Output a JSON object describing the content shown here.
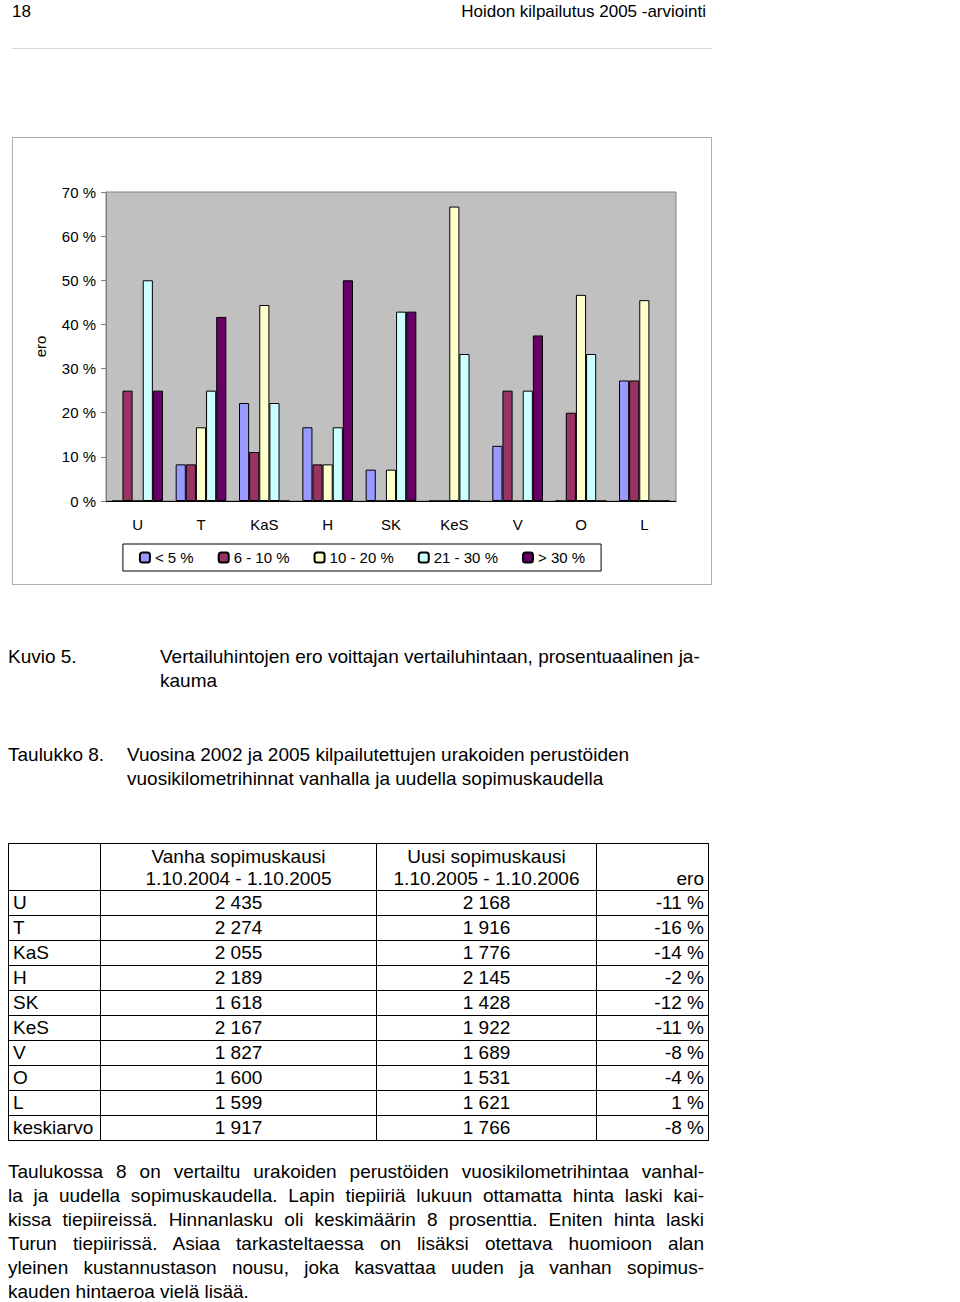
{
  "header": {
    "page_number": "18",
    "title": "Hoidon kilpailutus 2005 -arviointi"
  },
  "chart_data": {
    "type": "bar",
    "categories": [
      "U",
      "T",
      "KaS",
      "H",
      "SK",
      "KeS",
      "V",
      "O",
      "L"
    ],
    "series": [
      {
        "name": "< 5 %",
        "color": "#9999ff",
        "values": [
          0,
          8.3,
          22.2,
          16.7,
          7.1,
          0,
          12.5,
          0,
          27.3
        ]
      },
      {
        "name": "6 - 10 %",
        "color": "#993366",
        "values": [
          25,
          8.3,
          11.1,
          8.3,
          0,
          0,
          25,
          20,
          27.3
        ]
      },
      {
        "name": "10 - 20 %",
        "color": "#ffffcc",
        "values": [
          0,
          16.7,
          44.4,
          8.3,
          7.1,
          66.7,
          0,
          46.7,
          45.5
        ]
      },
      {
        "name": "21 - 30 %",
        "color": "#ccffff",
        "values": [
          50,
          25,
          22.2,
          16.7,
          42.9,
          33.3,
          25,
          33.3,
          0
        ]
      },
      {
        "name": "> 30 %",
        "color": "#660066",
        "values": [
          25,
          41.7,
          0,
          50,
          42.9,
          0,
          37.5,
          0,
          0
        ]
      }
    ],
    "y_label": "ero",
    "ylim": [
      0,
      70
    ],
    "yticks": [
      {
        "value": 0,
        "label": "0 %"
      },
      {
        "value": 10,
        "label": "10 %"
      },
      {
        "value": 20,
        "label": "20 %"
      },
      {
        "value": 30,
        "label": "30 %"
      },
      {
        "value": 40,
        "label": "40 %"
      },
      {
        "value": 50,
        "label": "50 %"
      },
      {
        "value": 60,
        "label": "60 %"
      },
      {
        "value": 70,
        "label": "70 %"
      }
    ],
    "grid": false,
    "legend": "bottom"
  },
  "figure_caption": {
    "label": "Kuvio 5.",
    "lines": [
      "Vertailuhintojen ero voittajan vertailuhintaan, prosentuaalinen ja-",
      "kauma"
    ]
  },
  "table_caption": {
    "label": "Taulukko 8.",
    "lines": [
      "Vuosina 2002 ja 2005 kilpailutettujen urakoiden perustöiden",
      "vuosikilometrihinnat vanhalla ja uudella sopimuskaudella"
    ]
  },
  "table": {
    "header": [
      [
        ""
      ],
      [
        "Vanha sopimuskausi",
        "1.10.2004 - 1.10.2005"
      ],
      [
        "Uusi sopimuskausi",
        "1.10.2005 - 1.10.2006"
      ],
      [
        "ero"
      ]
    ],
    "rows": [
      [
        "U",
        "2 435",
        "2 168",
        "-11 %"
      ],
      [
        "T",
        "2 274",
        "1 916",
        "-16 %"
      ],
      [
        "KaS",
        "2 055",
        "1 776",
        "-14 %"
      ],
      [
        "H",
        "2 189",
        "2 145",
        "-2 %"
      ],
      [
        "SK",
        "1 618",
        "1 428",
        "-12 %"
      ],
      [
        "KeS",
        "2 167",
        "1 922",
        "-11 %"
      ],
      [
        "V",
        "1 827",
        "1 689",
        "-8 %"
      ],
      [
        "O",
        "1 600",
        "1 531",
        "-4 %"
      ],
      [
        "L",
        "1 599",
        "1 621",
        "1 %"
      ],
      [
        "keskiarvo",
        "1 917",
        "1 766",
        "-8 %"
      ]
    ]
  },
  "paragraph": {
    "lines": [
      "Taulukossa 8 on vertailtu urakoiden perustöiden vuosikilometrihintaa vanhal-",
      "la ja uudella sopimuskaudella. Lapin tiepiiriä lukuun ottamatta hinta laski kai-",
      "kissa tiepiireissä. Hinnanlasku oli keskimäärin 8 prosenttia. Eniten hinta laski",
      "Turun tiepiirissä. Asiaa tarkasteltaessa on lisäksi otettava huomioon alan",
      "yleinen kustannustason nousu, joka kasvattaa uuden ja vanhan sopimus-",
      "kauden hintaeroa vielä lisää."
    ]
  }
}
